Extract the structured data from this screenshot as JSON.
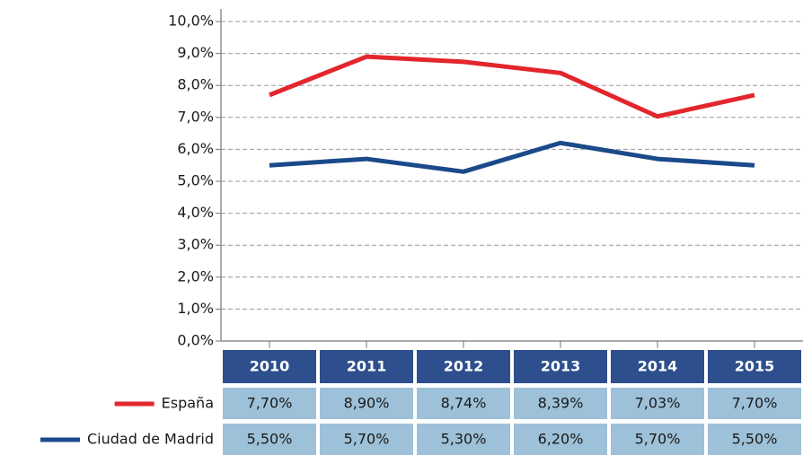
{
  "chart_data": {
    "type": "line",
    "categories": [
      "2010",
      "2011",
      "2012",
      "2013",
      "2014",
      "2015"
    ],
    "series": [
      {
        "name": "España",
        "color": "#e3262d",
        "values": [
          7.7,
          8.9,
          8.74,
          8.39,
          7.03,
          7.7
        ],
        "value_labels": [
          "7,70%",
          "8,90%",
          "8,74%",
          "8,39%",
          "7,03%",
          "7,70%"
        ]
      },
      {
        "name": "Ciudad de Madrid",
        "color": "#1b4a8a",
        "values": [
          5.5,
          5.7,
          5.3,
          6.2,
          5.7,
          5.5
        ],
        "value_labels": [
          "5,50%",
          "5,70%",
          "5,30%",
          "6,20%",
          "5,70%",
          "5,50%"
        ]
      }
    ],
    "ylim": [
      0,
      10
    ],
    "yticks": [
      {
        "value": 0,
        "label": "0,0%"
      },
      {
        "value": 1,
        "label": "1,0%"
      },
      {
        "value": 2,
        "label": "2,0%"
      },
      {
        "value": 3,
        "label": "3,0%"
      },
      {
        "value": 4,
        "label": "4,0%"
      },
      {
        "value": 5,
        "label": "5,0%"
      },
      {
        "value": 6,
        "label": "6,0%"
      },
      {
        "value": 7,
        "label": "7,0%"
      },
      {
        "value": 8,
        "label": "8,0%"
      },
      {
        "value": 9,
        "label": "9,0%"
      },
      {
        "value": 10,
        "label": "10,0%"
      }
    ],
    "grid": true
  }
}
